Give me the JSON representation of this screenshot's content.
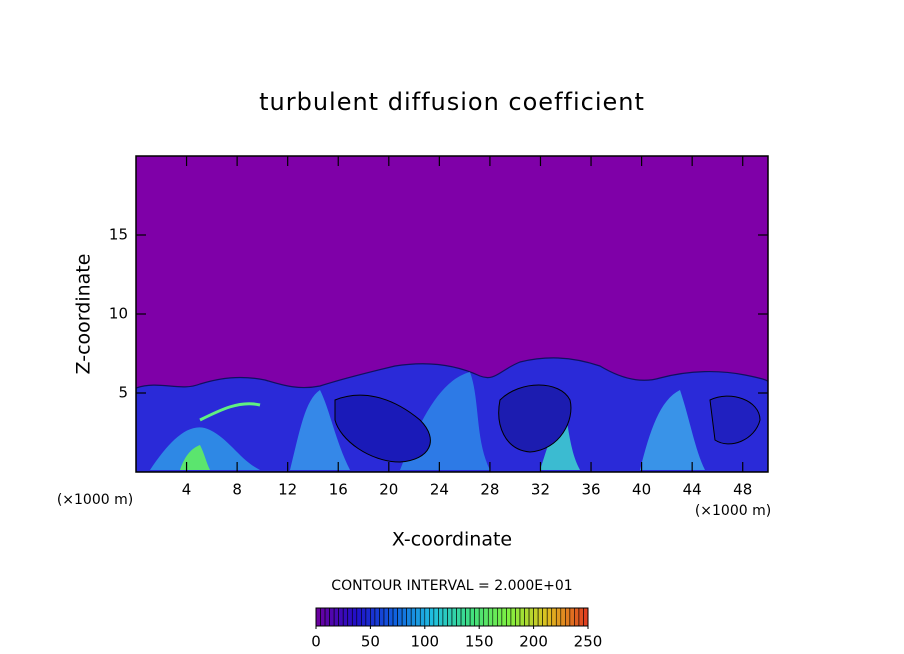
{
  "chart_data": {
    "type": "contour",
    "title": "turbulent diffusion coefficient",
    "x_label": "X-coordinate",
    "y_label": "Z-coordinate",
    "x_unit": "(×1000 m)",
    "y_unit": "(×1000 m)",
    "xlim": [
      0,
      50
    ],
    "xticks": [
      4,
      8,
      12,
      16,
      20,
      24,
      28,
      32,
      36,
      40,
      44,
      48
    ],
    "ylim": [
      0,
      20
    ],
    "yticks": [
      5,
      10,
      15
    ],
    "background_color": "#7f00a8",
    "contour_interval_label": "CONTOUR INTERVAL = 2.000E+01",
    "colorbar": {
      "lim": [
        0,
        250
      ],
      "ticks": [
        0,
        50,
        100,
        150,
        200,
        250
      ],
      "colors": [
        "#6a00a0",
        "#2010c8",
        "#1060e0",
        "#20c0e0",
        "#40e080",
        "#80f040",
        "#e0c020",
        "#e04020"
      ]
    }
  }
}
